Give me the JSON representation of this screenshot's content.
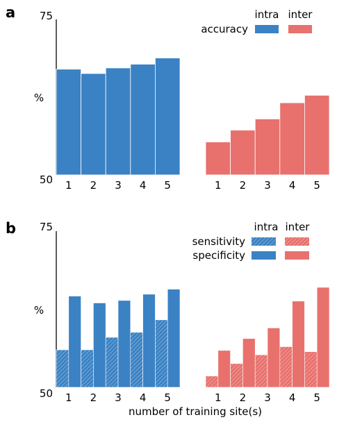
{
  "chart_data": [
    {
      "panel_label": "a",
      "type": "bar",
      "ylabel": "%",
      "ylim": [
        50,
        75
      ],
      "ytick_labels": [
        "75",
        "50"
      ],
      "grid": false,
      "legend": {
        "placement": "top-right",
        "column_headers": [
          "intra",
          "inter"
        ],
        "rows": [
          {
            "label": "accuracy",
            "pattern": "solid"
          }
        ]
      },
      "groups": [
        {
          "name": "intra",
          "color": "#3b82c4",
          "categories": [
            "1",
            "2",
            "3",
            "4",
            "5"
          ],
          "accuracy": [
            67.0,
            66.3,
            67.2,
            67.8,
            68.8
          ]
        },
        {
          "name": "inter",
          "color": "#e8716d",
          "categories": [
            "1",
            "2",
            "3",
            "4",
            "5"
          ],
          "accuracy": [
            55.3,
            57.2,
            59.0,
            61.6,
            62.8
          ]
        }
      ]
    },
    {
      "panel_label": "b",
      "type": "bar",
      "ylabel": "%",
      "xlabel": "number of training site(s)",
      "ylim": [
        50,
        75
      ],
      "ytick_labels": [
        "75",
        "50"
      ],
      "grid": false,
      "legend": {
        "placement": "top-right",
        "column_headers": [
          "intra",
          "inter"
        ],
        "rows": [
          {
            "label": "sensitivity",
            "pattern": "hatched"
          },
          {
            "label": "specificity",
            "pattern": "solid"
          }
        ]
      },
      "groups": [
        {
          "name": "intra",
          "color": "#3b82c4",
          "categories": [
            "1",
            "2",
            "3",
            "4",
            "5"
          ],
          "sensitivity": [
            56.0,
            56.0,
            58.0,
            58.8,
            60.8
          ],
          "specificity": [
            64.6,
            63.5,
            63.9,
            64.9,
            65.7
          ]
        },
        {
          "name": "inter",
          "color": "#e8716d",
          "categories": [
            "1",
            "2",
            "3",
            "4",
            "5"
          ],
          "sensitivity": [
            51.8,
            53.8,
            55.2,
            56.5,
            55.7
          ],
          "specificity": [
            55.9,
            57.8,
            59.5,
            63.8,
            66.0
          ]
        }
      ]
    }
  ]
}
